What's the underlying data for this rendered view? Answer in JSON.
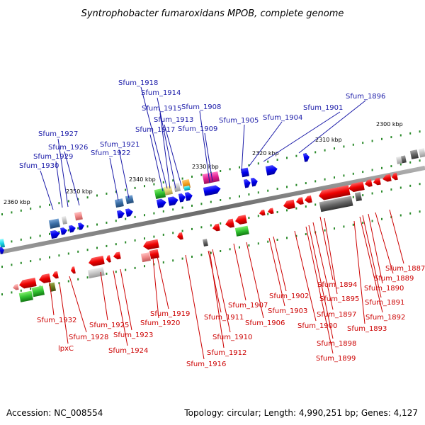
{
  "title": "Syntrophobacter fumaroxidans MPOB, complete genome",
  "footer": {
    "accession": "Accession: NC_008554",
    "topology": "Topology: circular; Length: 4,990,251 bp; Genes: 4,127"
  },
  "ticks": [
    "2300 kbp",
    "2310 kbp",
    "2320 kbp",
    "2330 kbp",
    "2340 kbp",
    "2350 kbp",
    "2360 kbp"
  ],
  "top_genes": [
    "Sfum_1896",
    "Sfum_1901",
    "Sfum_1904",
    "Sfum_1905",
    "Sfum_1908",
    "Sfum_1909",
    "Sfum_1913",
    "Sfum_1914",
    "Sfum_1915",
    "Sfum_1917",
    "Sfum_1918",
    "Sfum_1921",
    "Sfum_1922",
    "Sfum_1926",
    "Sfum_1927",
    "Sfum_1929",
    "Sfum_1930"
  ],
  "bottom_genes": [
    "Sfum_1887",
    "Sfum_1889",
    "Sfum_1890",
    "Sfum_1891",
    "Sfum_1892",
    "Sfum_1893",
    "Sfum_1894",
    "Sfum_1895",
    "Sfum_1897",
    "Sfum_1898",
    "Sfum_1899",
    "Sfum_1900",
    "Sfum_1902",
    "Sfum_1903",
    "Sfum_1906",
    "Sfum_1907",
    "Sfum_1910",
    "Sfum_1911",
    "Sfum_1912",
    "Sfum_1916",
    "Sfum_1919",
    "Sfum_1920",
    "Sfum_1923",
    "Sfum_1924",
    "Sfum_1925",
    "Sfum_1928",
    "Sfum_1932",
    "lpxC"
  ],
  "colors": {
    "forward_gene": "#0000ee",
    "reverse_gene": "#ee0000",
    "top_label": "#1a1aa8",
    "bottom_label": "#cc0000",
    "backbone": "#777777",
    "tick": "#2a8a2a"
  }
}
